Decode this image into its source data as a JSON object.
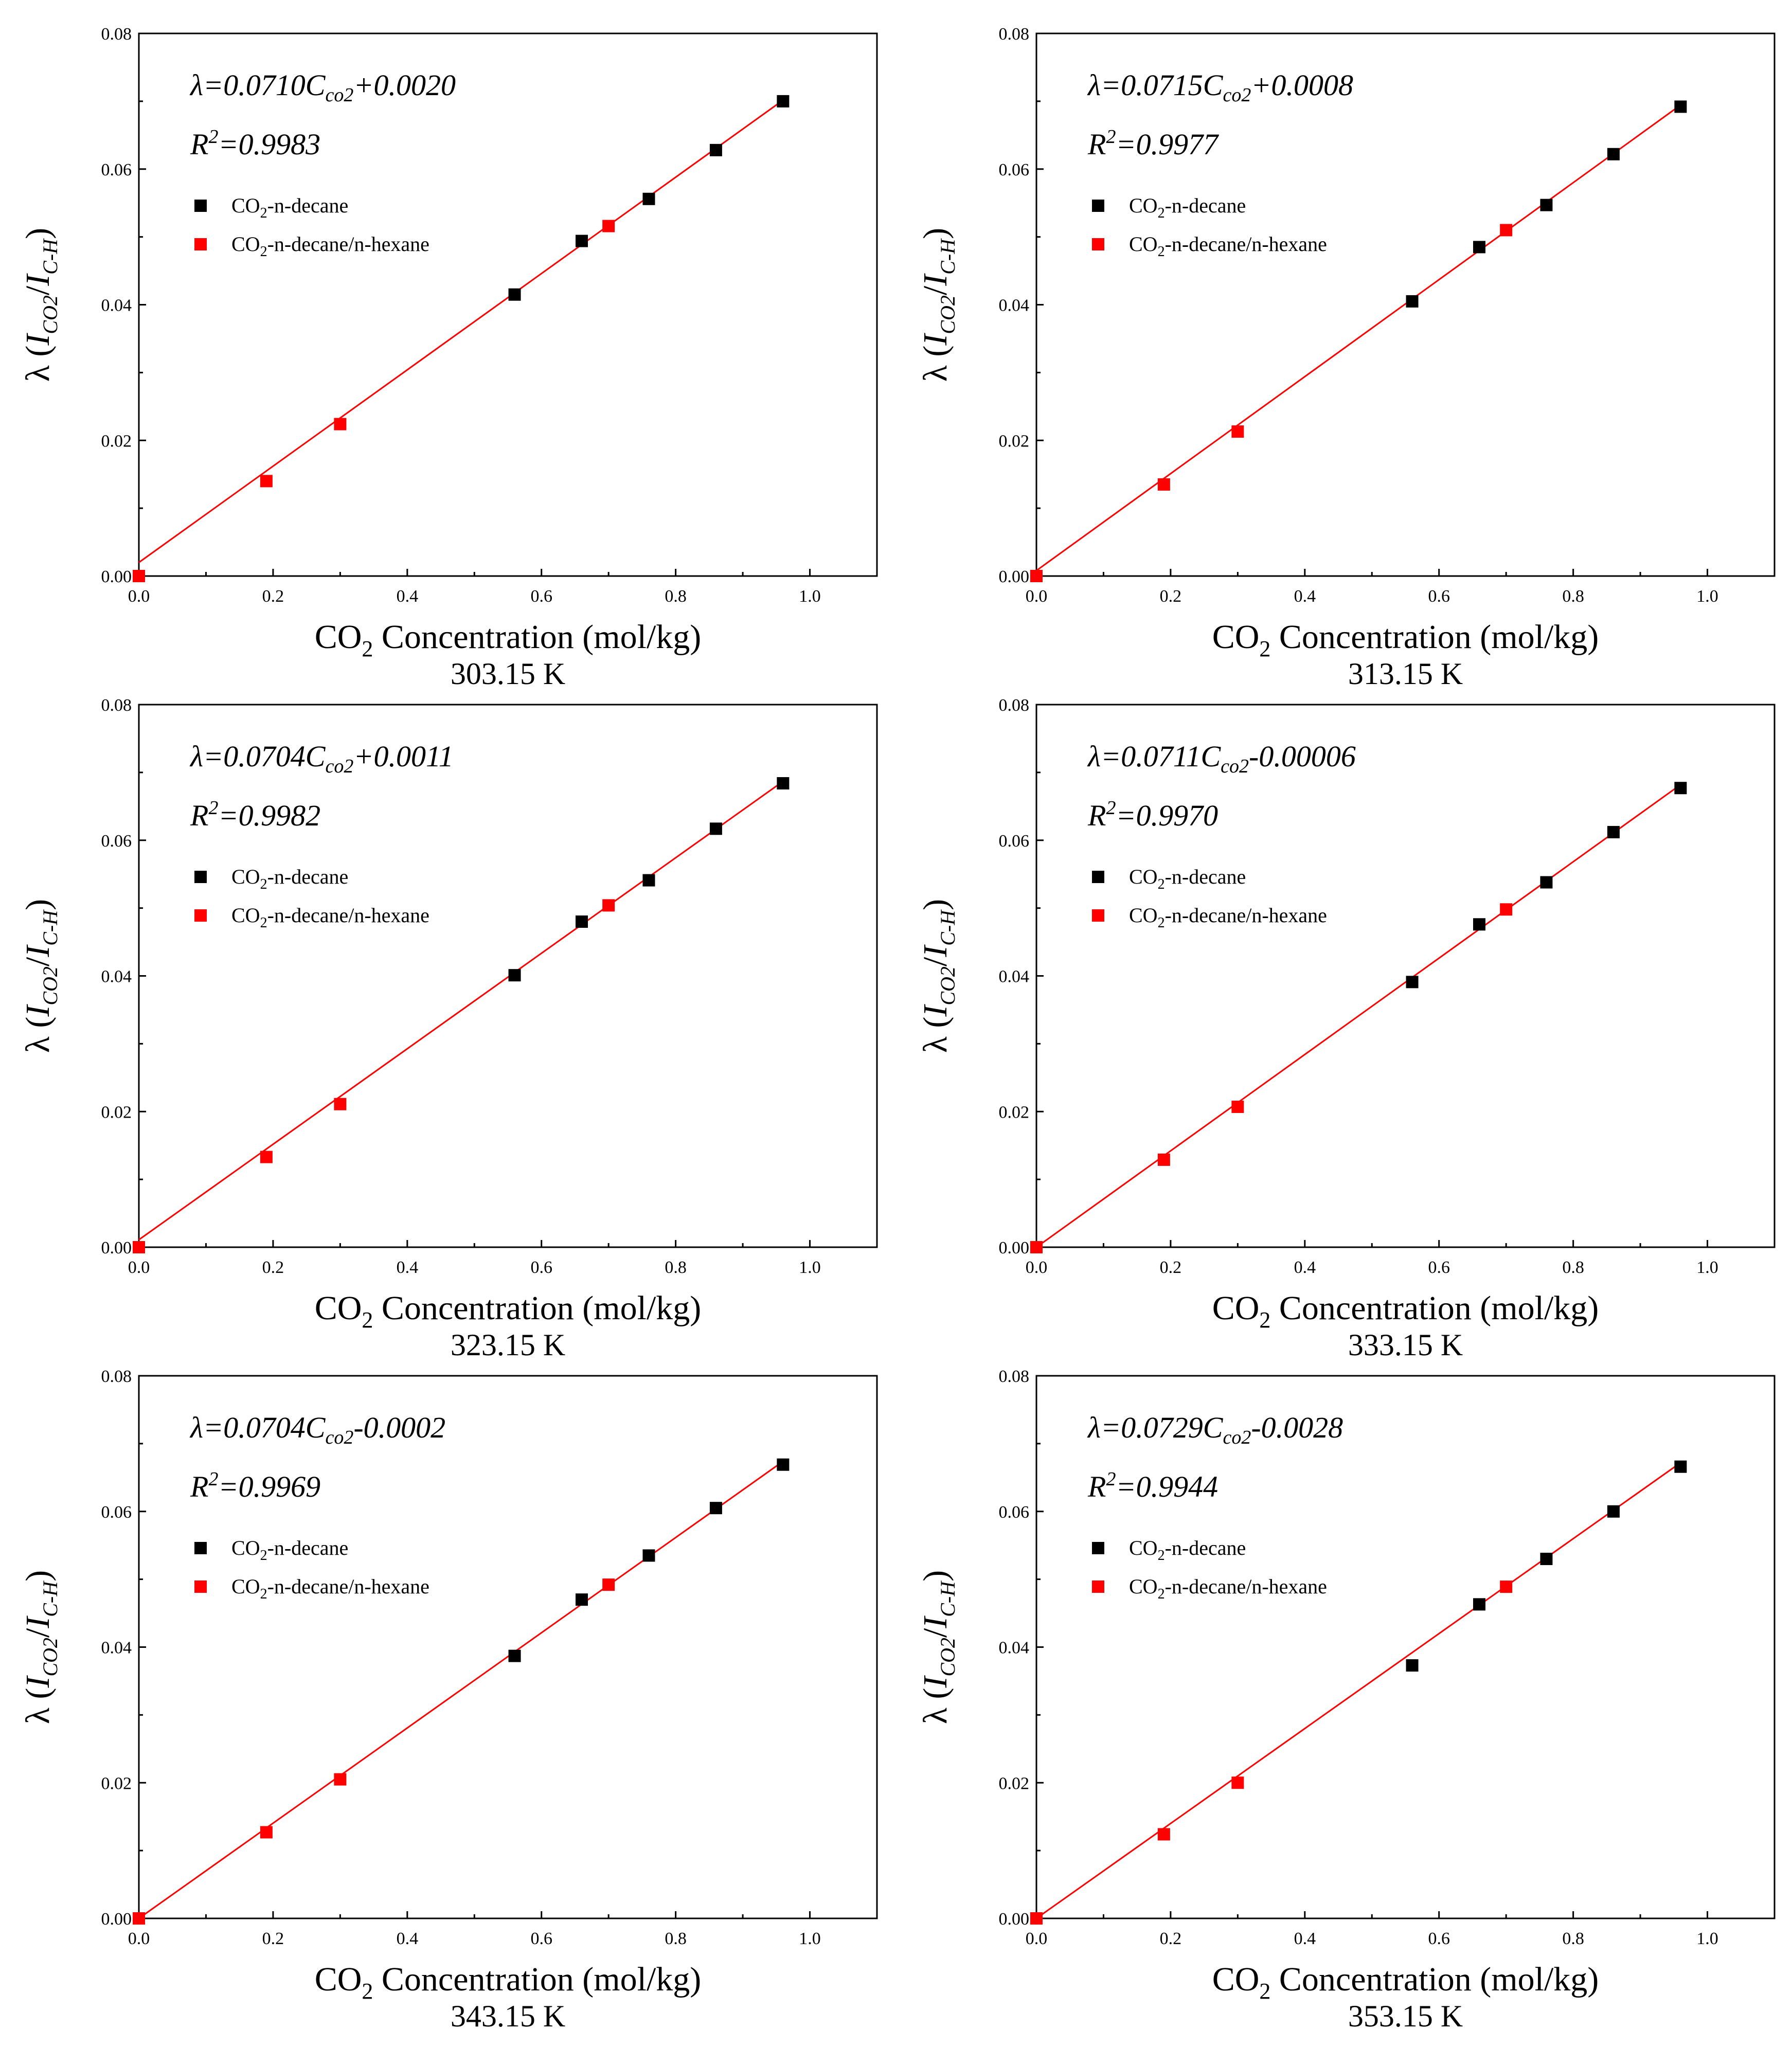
{
  "figure": {
    "background": "#ffffff"
  },
  "colors": {
    "pure_decane": "#000000",
    "mixture": "#ff0000",
    "fit_line": "#ff0000"
  },
  "legend": {
    "pure": {
      "main": "CO",
      "sub": "2",
      "rest": "-n-decane"
    },
    "mixture": {
      "main": "CO",
      "sub": "2",
      "rest": "-n-decane/n-hexane"
    }
  },
  "axes": {
    "xlabel": {
      "main": "CO",
      "sub": "2",
      "rest": " Concentration (mol/kg)"
    },
    "ylabel": {
      "prefix": "λ (",
      "i1": "I",
      "sub1": "CO2",
      "slash": "/",
      "i2": "I",
      "sub2": "C-H",
      "suffix": ")"
    },
    "x_ticks": [
      "0.0",
      "0.2",
      "0.4",
      "0.6",
      "0.8",
      "1.0"
    ],
    "y_ticks": [
      "0.00",
      "0.02",
      "0.04",
      "0.06",
      "0.08"
    ]
  },
  "chart_data": [
    {
      "type": "scatter",
      "title": "303.15 K",
      "xlabel": "CO2 Concentration (mol/kg)",
      "ylabel": "λ (I CO2 / I C-H)",
      "xlim": [
        0,
        1.1
      ],
      "ylim": [
        0,
        0.08
      ],
      "equation": {
        "head": "λ=0.0710C",
        "sub": "co2",
        "tail": "+0.0020"
      },
      "r2": {
        "base": "R",
        "sup": "2",
        "rest": "=0.9983"
      },
      "fit": {
        "slope": 0.071,
        "intercept": 0.002
      },
      "series": [
        {
          "name": "CO2-n-decane",
          "x": [
            0.56,
            0.66,
            0.76,
            0.86,
            0.96
          ],
          "y": [
            0.0415,
            0.0494,
            0.0556,
            0.0628,
            0.07
          ]
        },
        {
          "name": "CO2-n-decane/n-hexane",
          "x": [
            0.0,
            0.19,
            0.3,
            0.7
          ],
          "y": [
            0.0,
            0.014,
            0.0224,
            0.0516
          ]
        }
      ]
    },
    {
      "type": "scatter",
      "title": "313.15 K",
      "xlabel": "CO2 Concentration (mol/kg)",
      "ylabel": "λ (I CO2 / I C-H)",
      "xlim": [
        0,
        1.1
      ],
      "ylim": [
        0,
        0.08
      ],
      "equation": {
        "head": "λ=0.0715C",
        "sub": "co2",
        "tail": "+0.0008"
      },
      "r2": {
        "base": "R",
        "sup": "2",
        "rest": "=0.9977"
      },
      "fit": {
        "slope": 0.0715,
        "intercept": 0.0008
      },
      "series": [
        {
          "name": "CO2-n-decane",
          "x": [
            0.56,
            0.66,
            0.76,
            0.86,
            0.96
          ],
          "y": [
            0.0405,
            0.0485,
            0.0547,
            0.0622,
            0.0692
          ]
        },
        {
          "name": "CO2-n-decane/n-hexane",
          "x": [
            0.0,
            0.19,
            0.3,
            0.7
          ],
          "y": [
            0.0,
            0.0135,
            0.0213,
            0.051
          ]
        }
      ]
    },
    {
      "type": "scatter",
      "title": "323.15 K",
      "xlabel": "CO2 Concentration (mol/kg)",
      "ylabel": "λ (I CO2 / I C-H)",
      "xlim": [
        0,
        1.1
      ],
      "ylim": [
        0,
        0.08
      ],
      "equation": {
        "head": "λ=0.0704C",
        "sub": "co2",
        "tail": "+0.0011"
      },
      "r2": {
        "base": "R",
        "sup": "2",
        "rest": "=0.9982"
      },
      "fit": {
        "slope": 0.0704,
        "intercept": 0.0011
      },
      "series": [
        {
          "name": "CO2-n-decane",
          "x": [
            0.56,
            0.66,
            0.76,
            0.86,
            0.96
          ],
          "y": [
            0.0401,
            0.048,
            0.0541,
            0.0617,
            0.0684
          ]
        },
        {
          "name": "CO2-n-decane/n-hexane",
          "x": [
            0.0,
            0.19,
            0.3,
            0.7
          ],
          "y": [
            0.0,
            0.0133,
            0.0211,
            0.0504
          ]
        }
      ]
    },
    {
      "type": "scatter",
      "title": "333.15 K",
      "xlabel": "CO2 Concentration (mol/kg)",
      "ylabel": "λ (I CO2 / I C-H)",
      "xlim": [
        0,
        1.1
      ],
      "ylim": [
        0,
        0.08
      ],
      "equation": {
        "head": "λ=0.0711C",
        "sub": "co2",
        "tail": "-0.00006"
      },
      "r2": {
        "base": "R",
        "sup": "2",
        "rest": "=0.9970"
      },
      "fit": {
        "slope": 0.0711,
        "intercept": -6e-05
      },
      "series": [
        {
          "name": "CO2-n-decane",
          "x": [
            0.56,
            0.66,
            0.76,
            0.86,
            0.96
          ],
          "y": [
            0.0391,
            0.0476,
            0.0538,
            0.0612,
            0.0677
          ]
        },
        {
          "name": "CO2-n-decane/n-hexane",
          "x": [
            0.0,
            0.19,
            0.3,
            0.7
          ],
          "y": [
            0.0,
            0.0129,
            0.0207,
            0.0498
          ]
        }
      ]
    },
    {
      "type": "scatter",
      "title": "343.15 K",
      "xlabel": "CO2 Concentration (mol/kg)",
      "ylabel": "λ (I CO2 / I C-H)",
      "xlim": [
        0,
        1.1
      ],
      "ylim": [
        0,
        0.08
      ],
      "equation": {
        "head": "λ=0.0704C",
        "sub": "co2",
        "tail": "-0.0002"
      },
      "r2": {
        "base": "R",
        "sup": "2",
        "rest": "=0.9969"
      },
      "fit": {
        "slope": 0.0704,
        "intercept": -0.0002
      },
      "series": [
        {
          "name": "CO2-n-decane",
          "x": [
            0.56,
            0.66,
            0.76,
            0.86,
            0.96
          ],
          "y": [
            0.0387,
            0.047,
            0.0535,
            0.0605,
            0.0669
          ]
        },
        {
          "name": "CO2-n-decane/n-hexane",
          "x": [
            0.0,
            0.19,
            0.3,
            0.7
          ],
          "y": [
            0.0,
            0.0127,
            0.0205,
            0.0492
          ]
        }
      ]
    },
    {
      "type": "scatter",
      "title": "353.15 K",
      "xlabel": "CO2 Concentration (mol/kg)",
      "ylabel": "λ (I CO2 / I C-H)",
      "xlim": [
        0,
        1.1
      ],
      "ylim": [
        0,
        0.08
      ],
      "equation": {
        "head": "λ=0.0729C",
        "sub": "co2",
        "tail": "-0.0028"
      },
      "r2": {
        "base": "R",
        "sup": "2",
        "rest": "=0.9944"
      },
      "fit": {
        "slope": 0.0729,
        "intercept": -0.0028
      },
      "series": [
        {
          "name": "CO2-n-decane",
          "x": [
            0.56,
            0.66,
            0.76,
            0.86,
            0.96
          ],
          "y": [
            0.0373,
            0.0463,
            0.053,
            0.06,
            0.0666
          ]
        },
        {
          "name": "CO2-n-decane/n-hexane",
          "x": [
            0.0,
            0.19,
            0.3,
            0.7
          ],
          "y": [
            0.0,
            0.0124,
            0.02,
            0.0489
          ]
        }
      ]
    }
  ]
}
